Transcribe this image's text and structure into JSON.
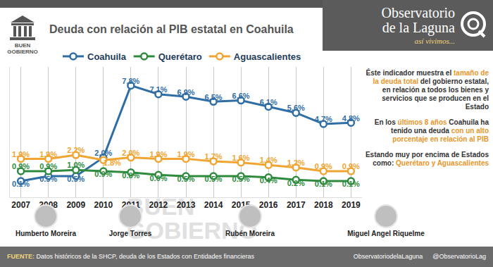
{
  "header": {
    "section": [
      "BUEN",
      "GOBIERNO"
    ],
    "brand": [
      "Observatorio",
      "de la Laguna"
    ],
    "tagline": "así vivimos..."
  },
  "chart_data": {
    "type": "line",
    "title": "Deuda con relación al PIB estatal en Coahuila",
    "categories": [
      "2007",
      "2008",
      "2009",
      "2010",
      "2011",
      "2012",
      "2013",
      "2014",
      "2015",
      "2016",
      "2017",
      "2018",
      "2019"
    ],
    "series": [
      {
        "name": "Coahuila",
        "color": "#2f6ea5",
        "values": [
          0.1,
          0.5,
          0.5,
          2.0,
          7.8,
          7.1,
          6.9,
          6.5,
          6.6,
          6.1,
          5.6,
          4.7,
          4.8
        ],
        "value_labels": [
          "0.1%",
          "0.5%",
          "0.5%",
          "2.0%",
          "7.8%",
          "7.1%",
          "6.9%",
          "6.5%",
          "6.6%",
          "6.1%",
          "5.6%",
          "4.7%",
          "4.8%"
        ]
      },
      {
        "name": "Querétaro",
        "color": "#2e8b3e",
        "values": [
          0.9,
          0.9,
          1.0,
          0.9,
          0.8,
          0.6,
          0.5,
          0.5,
          0.5,
          0.4,
          0.2,
          0.1,
          0.1
        ],
        "value_labels": [
          "0.9%",
          "0.9%",
          "1.0%",
          "0.9%",
          "0.8%",
          "0.6%",
          "0.5%",
          "0.5%",
          "0.5%",
          "0.4%",
          "0.2%",
          "0.1%",
          "0.1%"
        ]
      },
      {
        "name": "Aguascalientes",
        "color": "#f0a532",
        "values": [
          1.9,
          1.9,
          2.2,
          1.8,
          2.0,
          1.9,
          1.9,
          1.7,
          1.6,
          1.4,
          1.2,
          0.9,
          0.9
        ],
        "value_labels": [
          "1.9%",
          "1.9%",
          "2.2%",
          "1.8%",
          "2.0%",
          "1.9%",
          "1.9%",
          "1.7%",
          "1.6%",
          "1.4%",
          "1.2%",
          "0.9%",
          "0.9%"
        ]
      }
    ],
    "ylim": [
      -1.2,
      9.3
    ],
    "yticks": [],
    "grid": true,
    "legend": "top",
    "data_labels": true,
    "tick_labels": "x",
    "marker": "circle",
    "line_style": "solid"
  },
  "panel": [
    [
      {
        "text": "Éste indicador muestra el ",
        "accent": false
      },
      {
        "text": "tamaño de la deuda total",
        "accent": true
      },
      {
        "text": " del gobierno estatal, en relación a todos los bienes y servicios que se producen en el Estado",
        "accent": false
      }
    ],
    [
      {
        "text": "En los ",
        "accent": false
      },
      {
        "text": "últimos 8 años",
        "accent": true
      },
      {
        "text": " Coahuila ha tenido una deuda ",
        "accent": false
      },
      {
        "text": "con un alto porcentaje en relación al PIB",
        "accent": true
      }
    ],
    [
      {
        "text": "Estando muy por encima de Estados como: ",
        "accent": false
      },
      {
        "text": "Querétaro y Aguascalientes",
        "accent": true
      }
    ]
  ],
  "watermark": [
    "BUEN",
    "GOBIERNO"
  ],
  "governors": [
    "Humberto Moreira",
    "Jorge Torres",
    "Rubén Moreira",
    "Miguel Angel Riquelme"
  ],
  "footer": {
    "source_label": "FUENTE:",
    "source": "Datos históricos de la SHCP, deuda de los Estados con Entidades financieras",
    "social": [
      "ObservatoriodelaLaguna",
      "@ObservatorioLag"
    ]
  }
}
